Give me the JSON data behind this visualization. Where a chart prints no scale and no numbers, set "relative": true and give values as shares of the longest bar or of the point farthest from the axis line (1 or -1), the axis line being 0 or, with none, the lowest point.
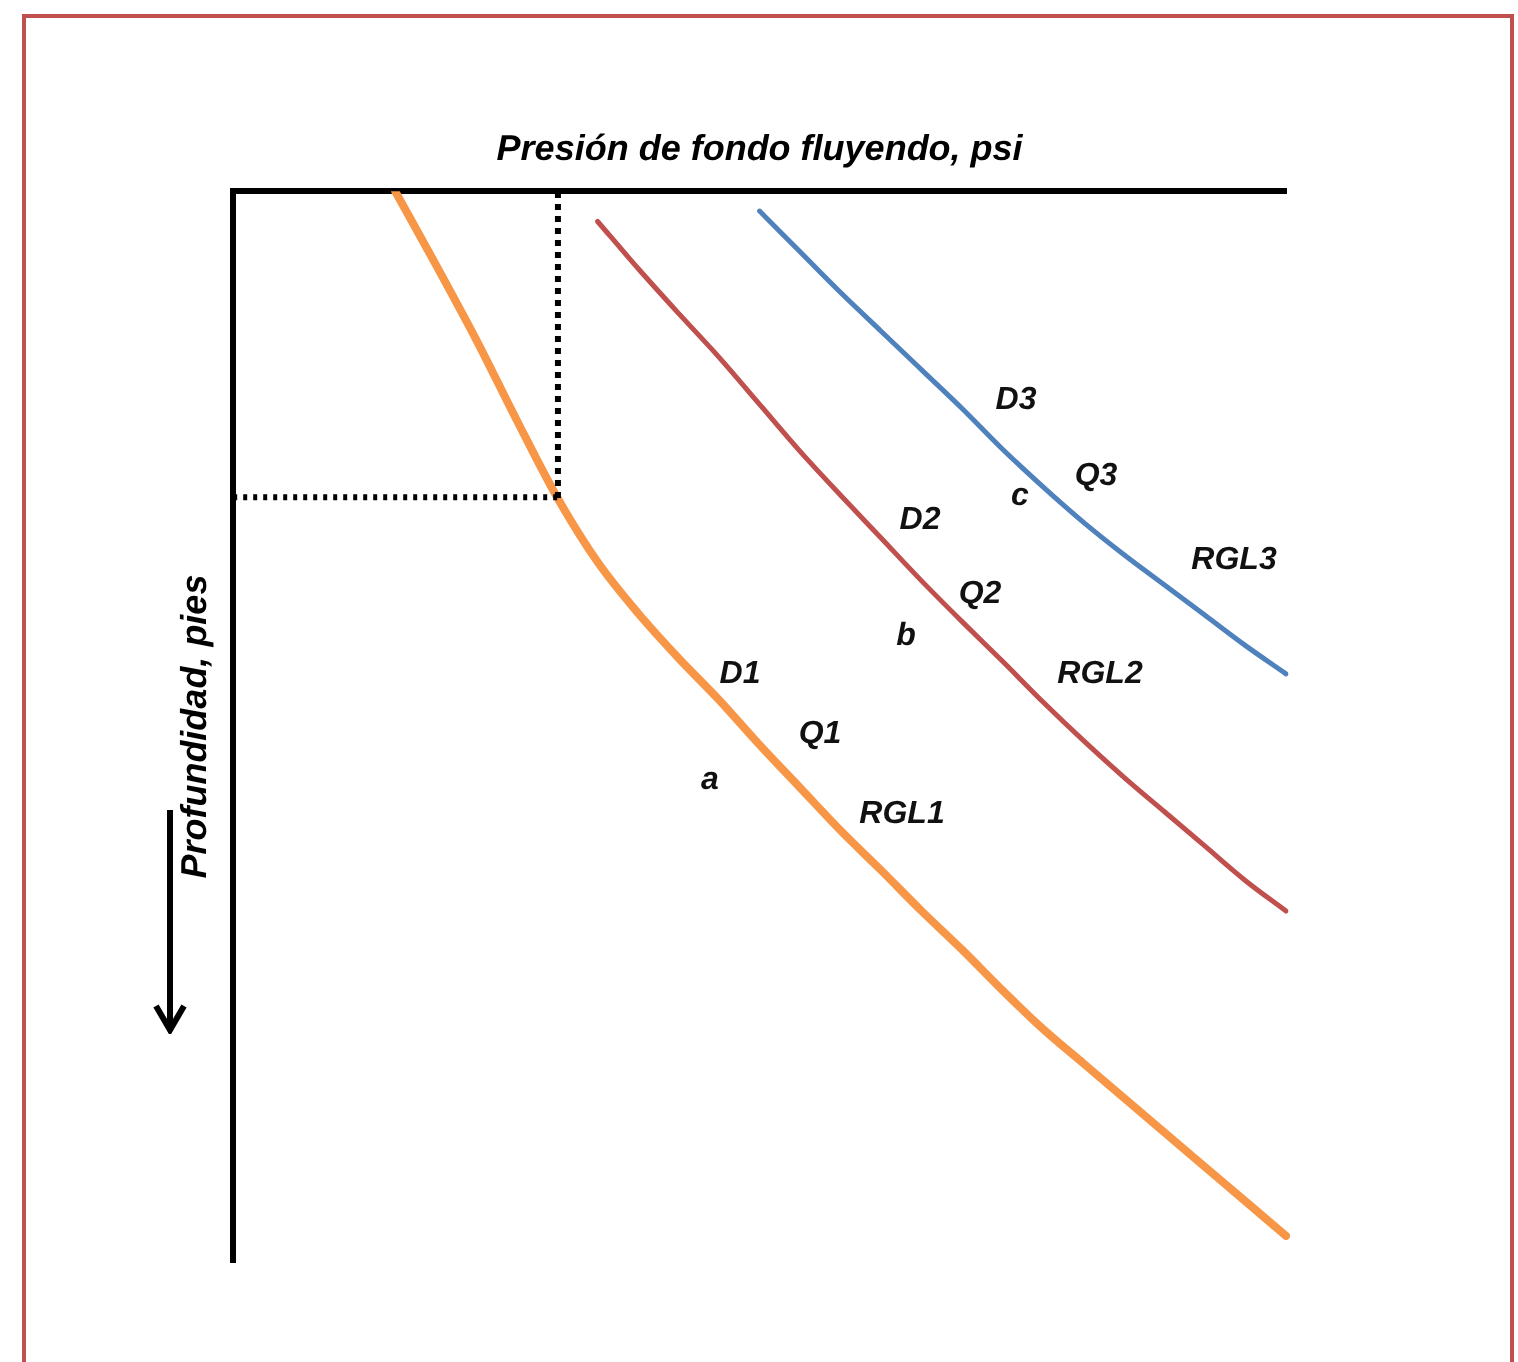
{
  "chart_data": {
    "type": "line",
    "relative": true,
    "xlabel": "Presión de fondo fluyendo, psi",
    "ylabel": "Profundidad, pies",
    "categories": [
      null,
      null,
      null,
      null,
      null,
      null,
      null,
      null,
      null,
      null,
      null,
      null,
      null,
      null,
      null,
      null,
      null,
      null,
      null,
      null,
      null,
      null,
      null,
      null,
      null,
      null,
      null
    ],
    "series": [
      {
        "color": "#f79646",
        "values": [
          null,
          null,
          null,
          null,
          0,
          -0.07,
          -0.142,
          -0.219,
          -0.293,
          -0.355,
          -0.404,
          -0.447,
          -0.487,
          -0.53,
          -0.571,
          -0.612,
          -0.65,
          -0.689,
          -0.726,
          -0.765,
          -0.802,
          -0.835,
          -0.868,
          -0.901,
          -0.934,
          -0.967,
          -1
        ]
      },
      {
        "color": "#c0504d",
        "values": [
          null,
          null,
          null,
          null,
          null,
          null,
          null,
          null,
          null,
          -0.029,
          -0.074,
          -0.117,
          -0.159,
          -0.204,
          -0.249,
          -0.291,
          -0.332,
          -0.373,
          -0.412,
          -0.45,
          -0.489,
          -0.526,
          -0.561,
          -0.594,
          -0.627,
          -0.66,
          -0.689
        ]
      },
      {
        "color": "#4f81bd",
        "values": [
          null,
          null,
          null,
          null,
          null,
          null,
          null,
          null,
          null,
          null,
          null,
          null,
          null,
          -0.019,
          -0.058,
          -0.097,
          -0.134,
          -0.171,
          -0.208,
          -0.247,
          -0.283,
          -0.317,
          -0.348,
          -0.377,
          -0.406,
          -0.435,
          -0.462
        ]
      }
    ],
    "annotations": [
      "D1",
      "Q1",
      "a",
      "RGL1",
      "D2",
      "Q2",
      "b",
      "RGL2",
      "D3",
      "Q3",
      "c",
      "RGL3"
    ],
    "ref_lines": [
      {
        "axis": "y",
        "value": -0.293,
        "line_style": "dotted",
        "color": "#000000"
      }
    ],
    "legend": false,
    "grid": false,
    "marker": "none",
    "line_style": "solid"
  }
}
